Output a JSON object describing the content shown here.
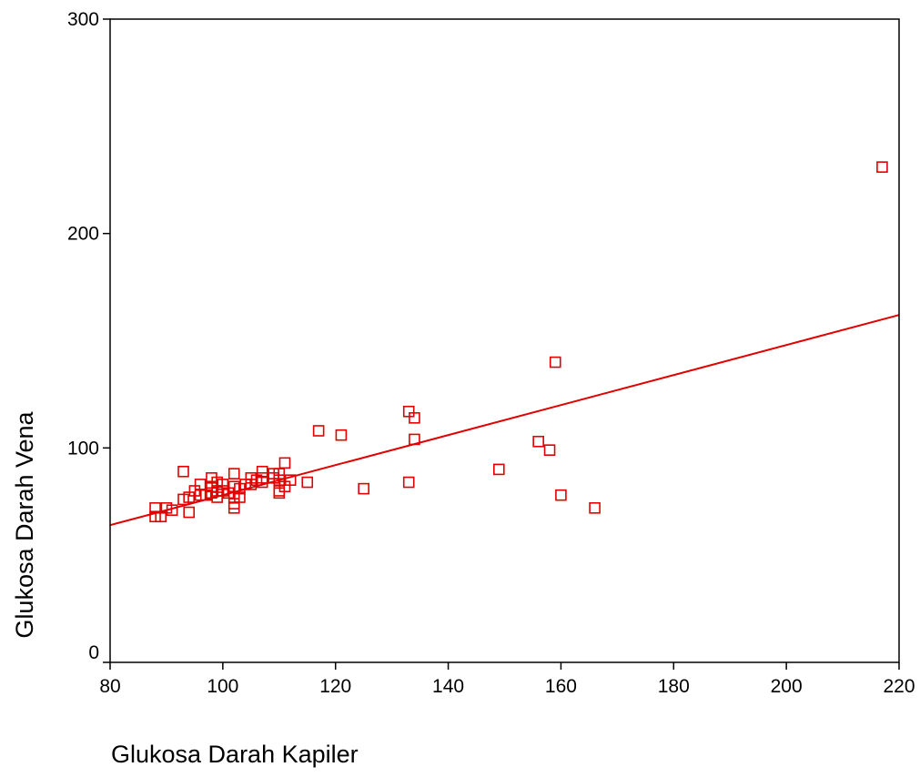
{
  "chart_data": {
    "type": "scatter",
    "title": "",
    "xlabel": "Glukosa Darah Kapiler",
    "ylabel": "Glukosa Darah Vena",
    "xlim": [
      80,
      220
    ],
    "ylim": [
      0,
      300
    ],
    "x_ticks": [
      "80",
      "100",
      "120",
      "140",
      "160",
      "180",
      "200",
      "220"
    ],
    "y_ticks": [
      "0",
      "100",
      "200",
      "300"
    ],
    "x_tick_values": [
      80,
      100,
      120,
      140,
      160,
      180,
      200,
      220
    ],
    "y_tick_values": [
      0,
      100,
      200,
      300
    ],
    "grid": false,
    "legend": "none",
    "colors": {
      "points": "#e00000",
      "fit_line": "#e00000",
      "axes": "#000000"
    },
    "marker": "open-square",
    "fit_line": {
      "x": [
        80,
        220
      ],
      "y": [
        64,
        162
      ]
    },
    "points": [
      [
        88,
        72
      ],
      [
        88,
        68
      ],
      [
        89,
        68
      ],
      [
        90,
        72
      ],
      [
        91,
        71
      ],
      [
        93,
        89
      ],
      [
        93,
        76
      ],
      [
        94,
        70
      ],
      [
        94,
        77
      ],
      [
        95,
        80
      ],
      [
        96,
        83
      ],
      [
        96,
        78
      ],
      [
        97,
        78
      ],
      [
        98,
        86
      ],
      [
        98,
        82
      ],
      [
        98,
        79
      ],
      [
        99,
        84
      ],
      [
        99,
        80
      ],
      [
        99,
        77
      ],
      [
        100,
        83
      ],
      [
        100,
        80
      ],
      [
        101,
        79
      ],
      [
        102,
        88
      ],
      [
        102,
        82
      ],
      [
        102,
        77
      ],
      [
        102,
        74
      ],
      [
        102,
        72
      ],
      [
        103,
        81
      ],
      [
        103,
        77
      ],
      [
        104,
        83
      ],
      [
        105,
        86
      ],
      [
        105,
        83
      ],
      [
        106,
        85
      ],
      [
        107,
        89
      ],
      [
        107,
        86
      ],
      [
        107,
        84
      ],
      [
        109,
        88
      ],
      [
        109,
        86
      ],
      [
        110,
        88
      ],
      [
        110,
        85
      ],
      [
        110,
        80
      ],
      [
        110,
        79
      ],
      [
        111,
        93
      ],
      [
        111,
        82
      ],
      [
        112,
        85
      ],
      [
        115,
        84
      ],
      [
        117,
        108
      ],
      [
        121,
        106
      ],
      [
        125,
        81
      ],
      [
        133,
        117
      ],
      [
        133,
        84
      ],
      [
        134,
        114
      ],
      [
        134,
        104
      ],
      [
        149,
        90
      ],
      [
        156,
        103
      ],
      [
        158,
        99
      ],
      [
        159,
        140
      ],
      [
        160,
        78
      ],
      [
        166,
        72
      ],
      [
        217,
        231
      ]
    ]
  }
}
